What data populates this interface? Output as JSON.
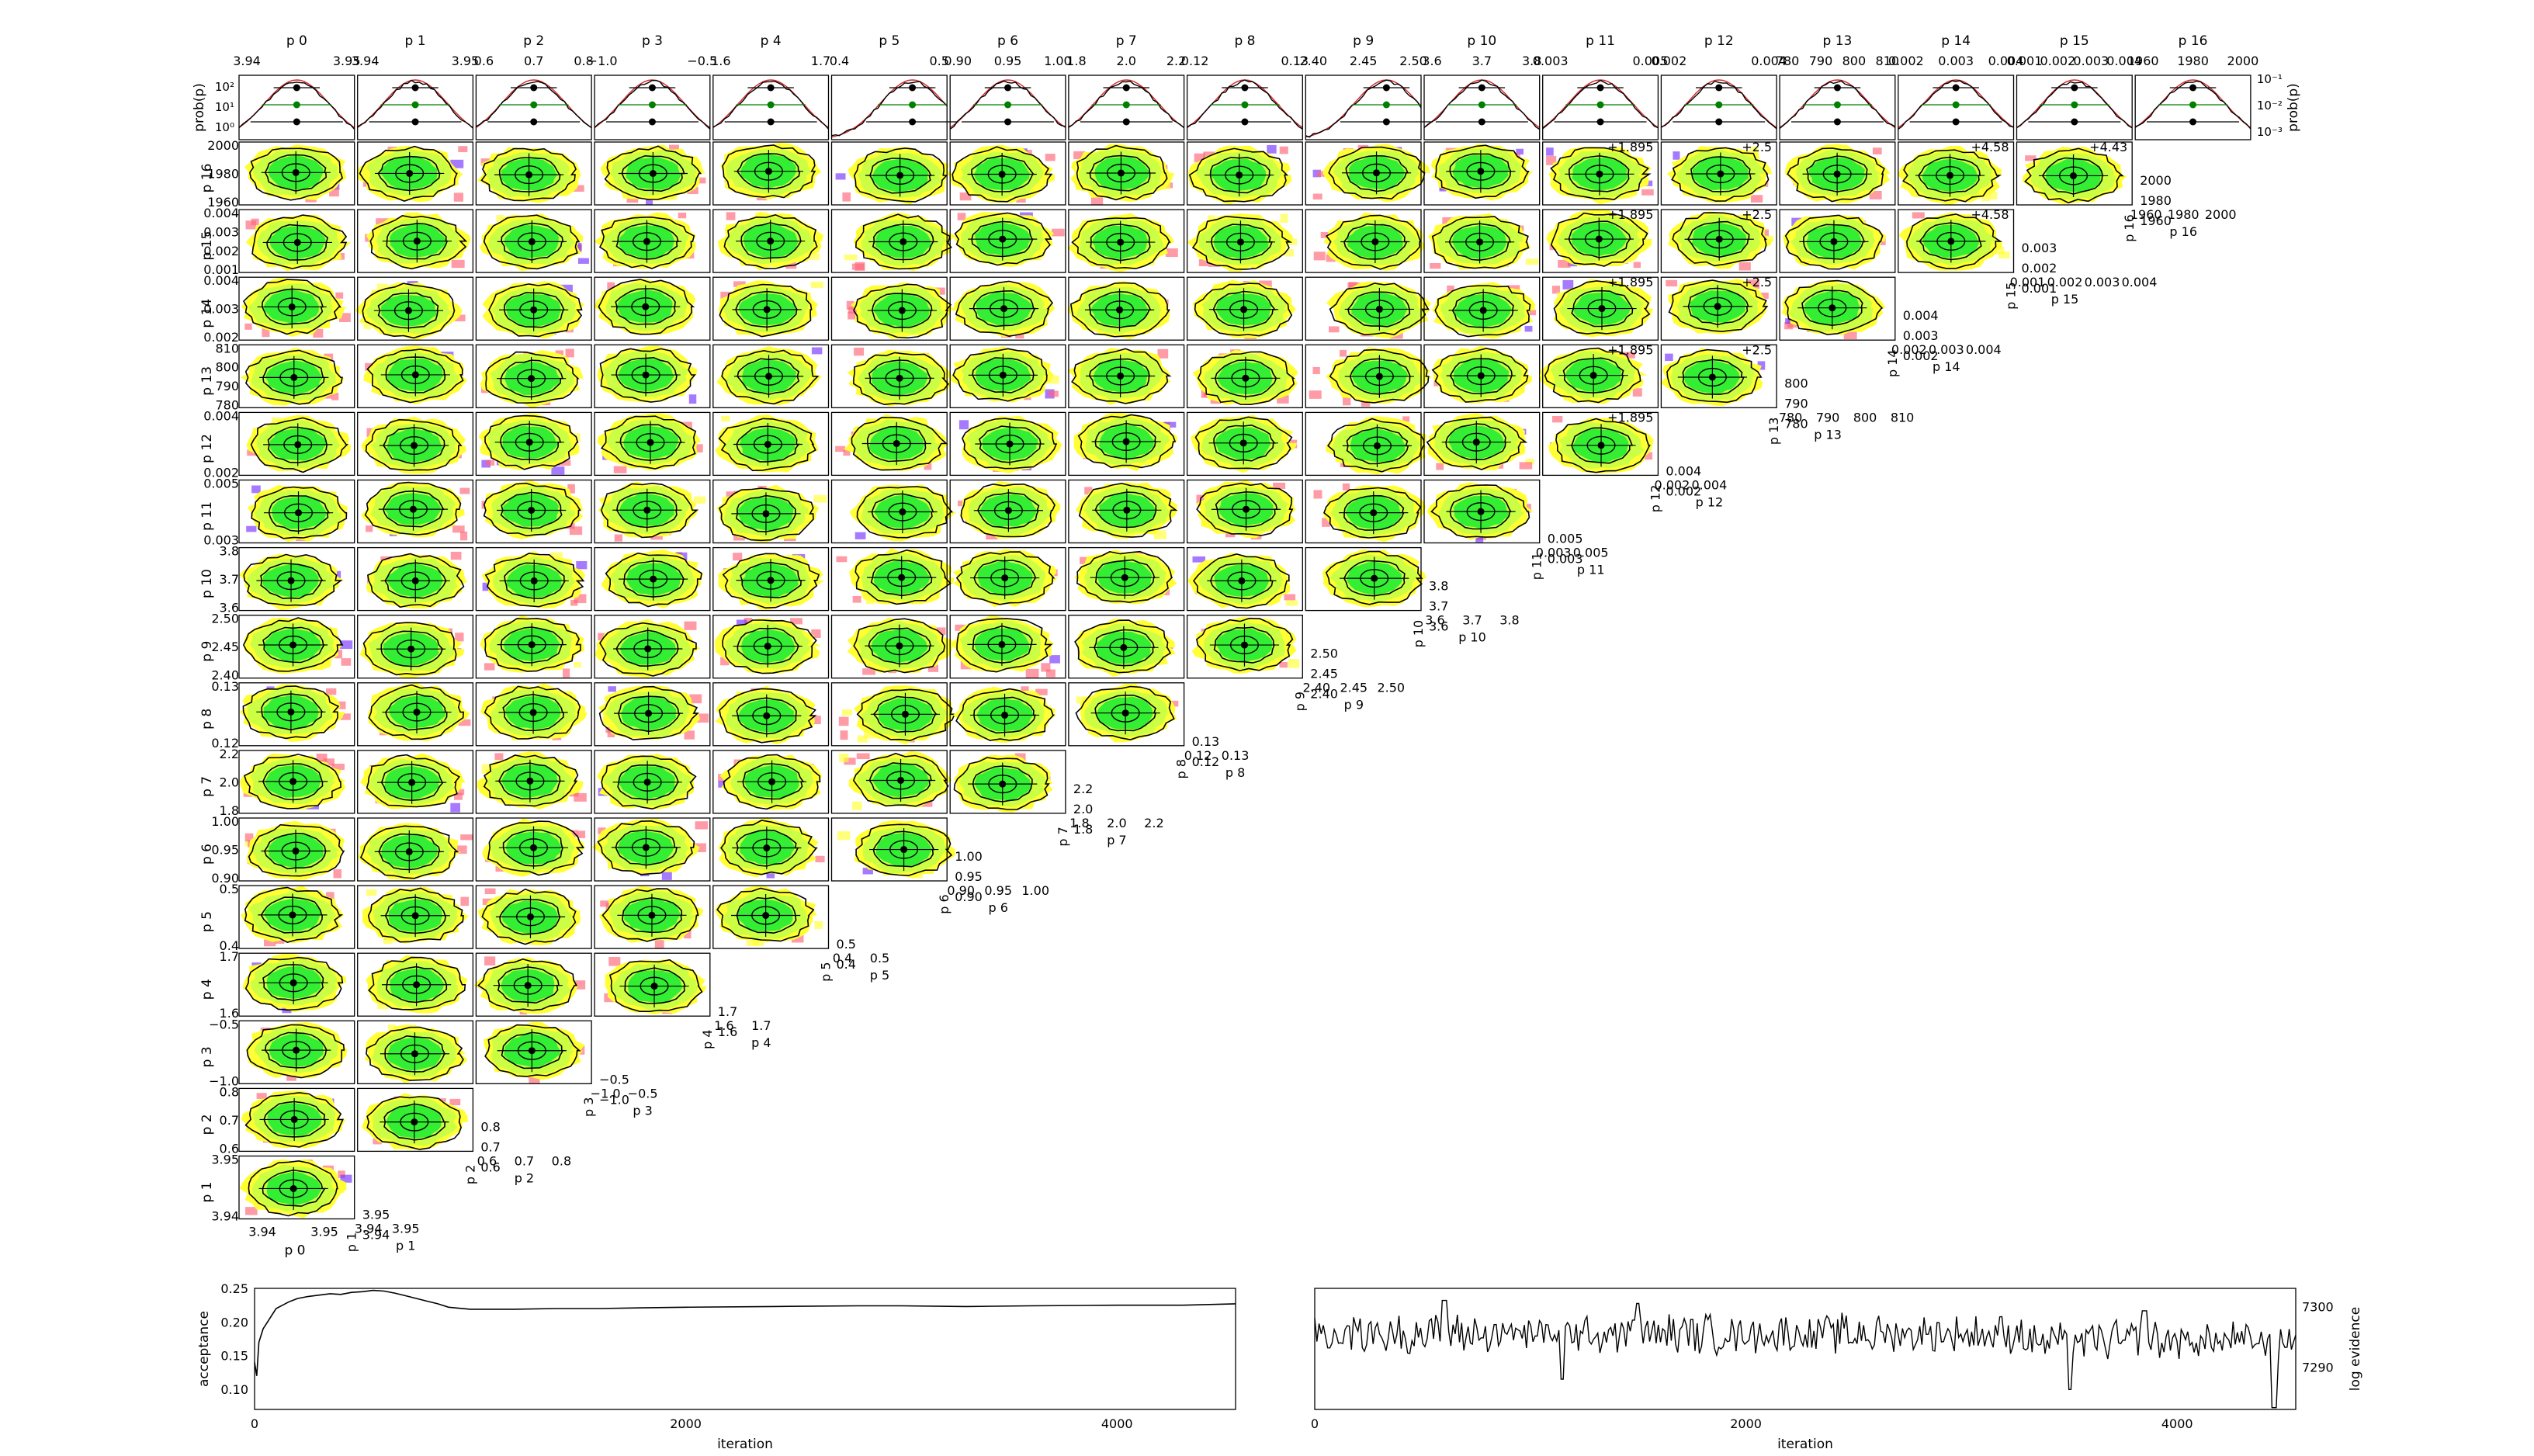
{
  "chart_data": [
    {
      "type": "scatter",
      "subtype": "corner-plot",
      "title": "",
      "parameters": [
        {
          "label": "p 0",
          "ticks": [
            "3.94",
            "3.95"
          ]
        },
        {
          "label": "p 1",
          "ticks": [
            "3.94",
            "3.95"
          ]
        },
        {
          "label": "p 2",
          "ticks": [
            "0.6",
            "0.7",
            "0.8"
          ]
        },
        {
          "label": "p 3",
          "ticks": [
            "−1.0",
            "−0.5"
          ]
        },
        {
          "label": "p 4",
          "ticks": [
            "1.6",
            "1.7"
          ]
        },
        {
          "label": "p 5",
          "ticks": [
            "0.4",
            "0.5"
          ]
        },
        {
          "label": "p 6",
          "ticks": [
            "0.90",
            "0.95",
            "1.00"
          ]
        },
        {
          "label": "p 7",
          "ticks": [
            "1.8",
            "2.0",
            "2.2"
          ]
        },
        {
          "label": "p 8",
          "ticks": [
            "0.12",
            "0.13"
          ]
        },
        {
          "label": "p 9",
          "ticks": [
            "2.40",
            "2.45",
            "2.50"
          ]
        },
        {
          "label": "p 10",
          "ticks": [
            "3.6",
            "3.7",
            "3.8"
          ]
        },
        {
          "label": "p 11",
          "ticks": [
            "0.003",
            "0.005"
          ]
        },
        {
          "label": "p 12",
          "ticks": [
            "0.002",
            "0.004"
          ]
        },
        {
          "label": "p 13",
          "ticks": [
            "780",
            "790",
            "800",
            "810"
          ]
        },
        {
          "label": "p 14",
          "ticks": [
            "0.002",
            "0.003",
            "0.004"
          ]
        },
        {
          "label": "p 15",
          "ticks": [
            "0.001",
            "0.002",
            "0.003",
            "0.004"
          ]
        },
        {
          "label": "p 16",
          "ticks": [
            "1960",
            "1980",
            "2000"
          ]
        }
      ],
      "offset_labels": [
        {
          "param": 11,
          "text": "+1.895"
        },
        {
          "param": 12,
          "text": "+2.5"
        },
        {
          "param": 14,
          "text": "+4.58"
        },
        {
          "param": 15,
          "text": "+4.43"
        }
      ],
      "marginal_ylabel_left": "prob(p)",
      "marginal_ylabel_right": "prob(p)",
      "marginal_left_ticks": [
        "10²",
        "10¹",
        "10⁰"
      ],
      "marginal_right_ticks": [
        "10⁻¹",
        "10⁻²",
        "10⁻³"
      ],
      "colors": {
        "contour": "#000000",
        "fit": "#d62728",
        "median": "#008000",
        "fill_core": "#33ee33",
        "fill_mid": "#ccff44",
        "fill_outer": "#ffff33",
        "fill_tail": "#ff6677",
        "outlier": "#7733ff"
      }
    },
    {
      "type": "line",
      "title": "",
      "xlabel": "iteration",
      "ylabel": "acceptance",
      "xlim": [
        0,
        4550
      ],
      "ylim": [
        0.07,
        0.25
      ],
      "xticks": [
        "0",
        "2000",
        "4000"
      ],
      "yticks": [
        "0.25",
        "0.20",
        "0.15",
        "0.10"
      ],
      "series": [
        {
          "x": [
            0,
            10,
            20,
            40,
            60,
            80,
            100,
            130,
            160,
            200,
            250,
            300,
            350,
            400,
            450,
            500,
            550,
            600,
            650,
            700,
            750,
            800,
            850,
            900,
            1000,
            1100,
            1200,
            1400,
            1600,
            1800,
            2000,
            2400,
            2800,
            3000,
            3300,
            3600,
            4000,
            4300,
            4550
          ],
          "values": [
            0.14,
            0.12,
            0.17,
            0.19,
            0.2,
            0.21,
            0.22,
            0.225,
            0.23,
            0.235,
            0.238,
            0.24,
            0.242,
            0.241,
            0.244,
            0.245,
            0.247,
            0.246,
            0.243,
            0.239,
            0.235,
            0.231,
            0.227,
            0.222,
            0.219,
            0.219,
            0.219,
            0.22,
            0.22,
            0.221,
            0.222,
            0.223,
            0.224,
            0.224,
            0.223,
            0.224,
            0.225,
            0.225,
            0.227
          ]
        }
      ]
    },
    {
      "type": "line",
      "title": "",
      "xlabel": "iteration",
      "ylabel": "log evidence",
      "xlim": [
        0,
        4550
      ],
      "ylim": [
        7283,
        7303
      ],
      "xticks": [
        "0",
        "2000",
        "4000"
      ],
      "yticks": [
        "7300",
        "7290"
      ],
      "series": [
        {
          "description_of_shape": "noisy trace",
          "x_start": 0,
          "x_end": 4550,
          "count": 455,
          "level": 7295.5,
          "spread": 2.8,
          "dips": [
            [
              1150,
              7288
            ],
            [
              3500,
              7287.5
            ],
            [
              4450,
              7284.5
            ]
          ],
          "peaks": [
            [
              600,
              7301
            ],
            [
              1500,
              7300.5
            ],
            [
              3850,
              7300.5
            ]
          ]
        }
      ]
    }
  ]
}
